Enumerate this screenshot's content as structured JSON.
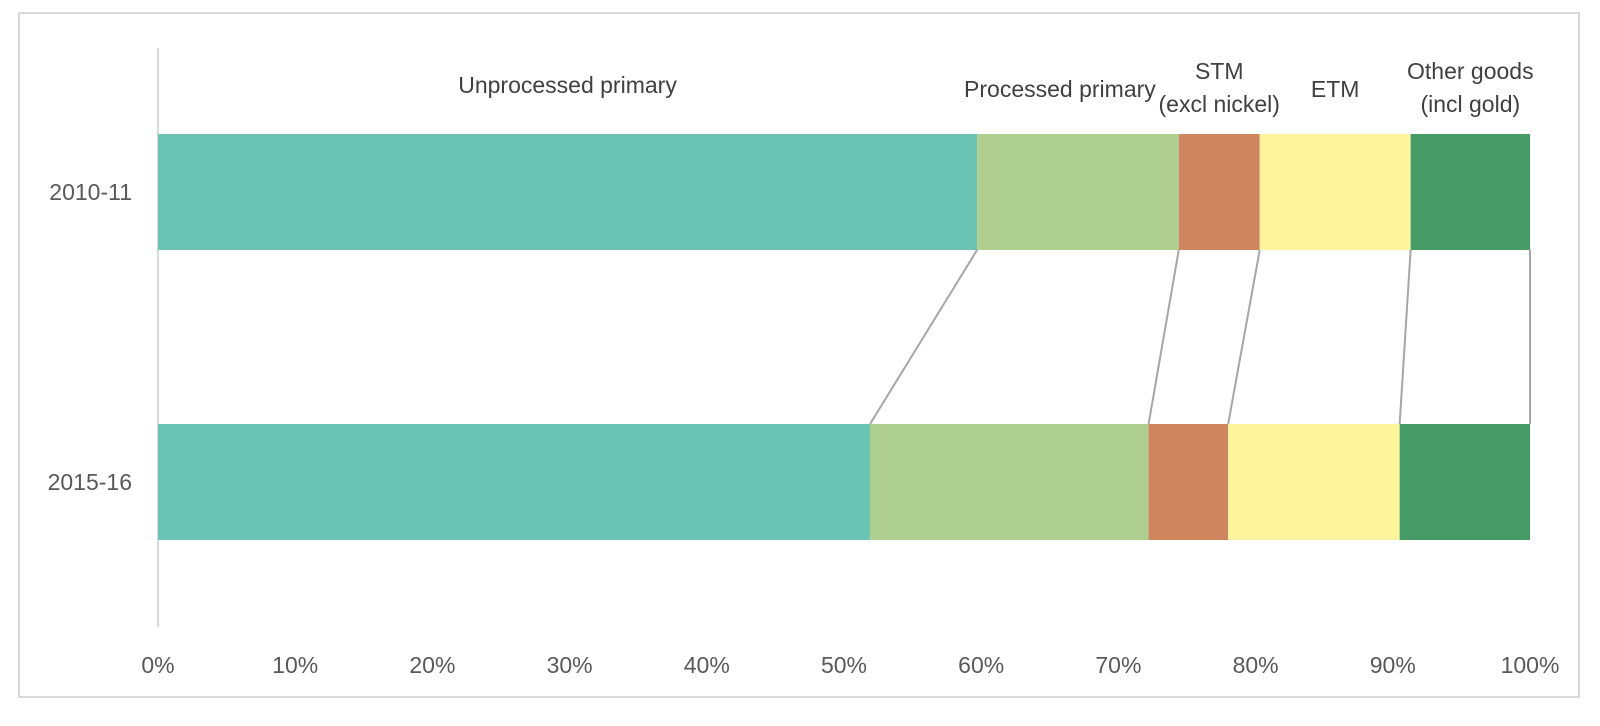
{
  "chart_data": {
    "type": "bar",
    "orientation": "horizontal",
    "stacked": true,
    "percent": true,
    "categories": [
      "2010-11",
      "2015-16"
    ],
    "series": [
      {
        "name": "Unprocessed primary",
        "values": [
          59.7,
          51.9
        ],
        "color": "#6cc4b4"
      },
      {
        "name": "Processed primary",
        "values": [
          14.7,
          20.3
        ],
        "color": "#aecf8f"
      },
      {
        "name": "STM (excl nickel)",
        "values": [
          5.9,
          5.8
        ],
        "color": "#d08561"
      },
      {
        "name": "ETM",
        "values": [
          11.0,
          12.5
        ],
        "color": "#fef49d"
      },
      {
        "name": "Other goods (incl gold)",
        "values": [
          8.7,
          9.5
        ],
        "color": "#469b67"
      }
    ],
    "series_labels": [
      [
        "Unprocessed primary"
      ],
      [
        "Processed primary"
      ],
      [
        "STM",
        "(excl nickel)"
      ],
      [
        "ETM"
      ],
      [
        "Other goods",
        "(incl gold)"
      ]
    ],
    "xlim": [
      0,
      100
    ],
    "x_ticks": [
      "0%",
      "10%",
      "20%",
      "30%",
      "40%",
      "50%",
      "60%",
      "70%",
      "80%",
      "90%",
      "100%"
    ],
    "series_lines": true,
    "legend": "none",
    "grid": false,
    "xlabel": "",
    "ylabel": "",
    "title": ""
  }
}
